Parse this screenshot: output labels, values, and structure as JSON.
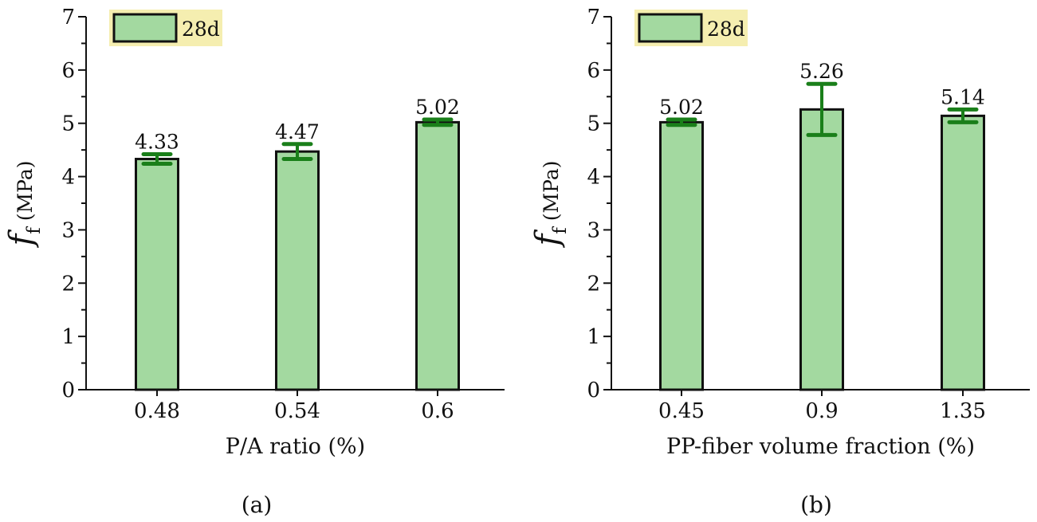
{
  "style": {
    "bar_fill": "#a3d9a0",
    "bar_stroke": "#111111",
    "error_color": "#1a7f1a",
    "legend_bg": "#f5eeb0"
  },
  "chart_data": [
    {
      "type": "bar",
      "panel_label": "(a)",
      "xlabel": "P/A ratio (%)",
      "ylabel": {
        "symbol": "f",
        "subscript": "f",
        "unit": "(MPa)"
      },
      "legend": [
        "28d"
      ],
      "ylim": [
        0,
        7
      ],
      "yticks": [
        "0",
        "1",
        "2",
        "3",
        "4",
        "5",
        "6",
        "7"
      ],
      "categories": [
        "0.48",
        "0.54",
        "0.6"
      ],
      "series": [
        {
          "name": "28d",
          "values": [
            4.33,
            4.47,
            5.02
          ],
          "errors": [
            0.09,
            0.14,
            0.05
          ],
          "data_labels": [
            "4.33",
            "4.47",
            "5.02"
          ]
        }
      ]
    },
    {
      "type": "bar",
      "panel_label": "(b)",
      "xlabel": "PP-fiber volume fraction (%)",
      "ylabel": {
        "symbol": "f",
        "subscript": "f",
        "unit": "(MPa)"
      },
      "legend": [
        "28d"
      ],
      "ylim": [
        0,
        7
      ],
      "yticks": [
        "0",
        "1",
        "2",
        "3",
        "4",
        "5",
        "6",
        "7"
      ],
      "categories": [
        "0.45",
        "0.9",
        "1.35"
      ],
      "series": [
        {
          "name": "28d",
          "values": [
            5.02,
            5.26,
            5.14
          ],
          "errors": [
            0.05,
            0.48,
            0.12
          ],
          "data_labels": [
            "5.02",
            "5.26",
            "5.14"
          ]
        }
      ]
    }
  ]
}
